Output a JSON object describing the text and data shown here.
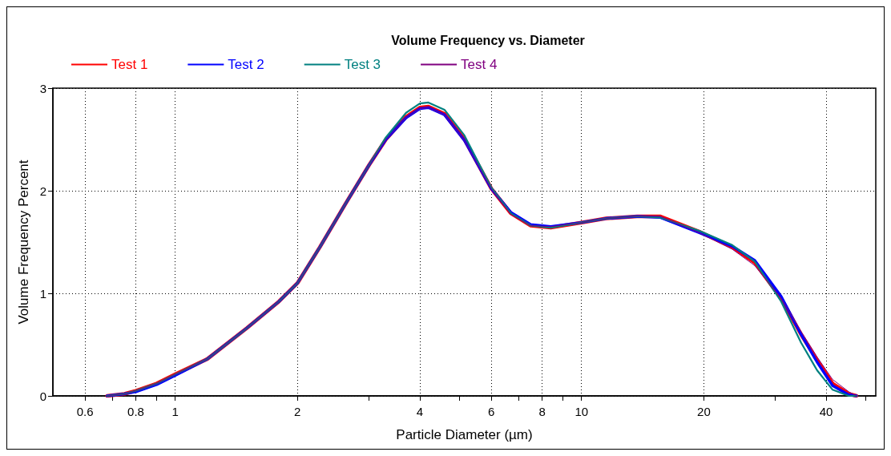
{
  "chart_data": {
    "type": "line",
    "title": "Volume Frequency vs. Diameter",
    "xlabel": "Particle Diameter (µm)",
    "ylabel": "Volume Frequency Percent",
    "log": "x",
    "xlim": [
      0.5,
      53
    ],
    "ylim": [
      0,
      3
    ],
    "yticks": [
      0,
      1,
      2,
      3
    ],
    "xticks": [
      0.6,
      {
        "value": 0.7,
        "label": null
      },
      0.8,
      {
        "value": 0.9,
        "label": null
      },
      1,
      2,
      {
        "value": 3,
        "label": null
      },
      4,
      {
        "value": 5,
        "label": null
      },
      6,
      {
        "value": 7,
        "label": null
      },
      8,
      {
        "value": 9,
        "label": null
      },
      10,
      20,
      {
        "value": 30,
        "label": null
      },
      40,
      {
        "value": 50,
        "label": null
      }
    ],
    "grid": true,
    "legend": "top left",
    "marker": "none",
    "line_style": "solid",
    "x": [
      0.68,
      0.75,
      0.8,
      0.9,
      1,
      1.2,
      1.5,
      1.8,
      2,
      2.27,
      2.65,
      3,
      3.3,
      3.7,
      4,
      4.2,
      4.6,
      5.15,
      6,
      6.7,
      7.5,
      8.4,
      10,
      11.5,
      13.7,
      15.6,
      19.5,
      23.5,
      26.7,
      31,
      34.7,
      38,
      41.5,
      45.5,
      47.5
    ],
    "series": [
      {
        "name": "Test 1",
        "color": "#ff0000",
        "values": [
          0,
          0.02,
          0.05,
          0.12,
          0.21,
          0.36,
          0.66,
          0.92,
          1.1,
          1.45,
          1.9,
          2.25,
          2.5,
          2.72,
          2.81,
          2.82,
          2.75,
          2.5,
          2.02,
          1.78,
          1.66,
          1.64,
          1.69,
          1.73,
          1.75,
          1.75,
          1.6,
          1.45,
          1.3,
          0.95,
          0.6,
          0.35,
          0.12,
          0.02,
          0
        ]
      },
      {
        "name": "Test 2",
        "color": "#0000ff",
        "values": [
          0,
          0.02,
          0.04,
          0.11,
          0.2,
          0.36,
          0.66,
          0.92,
          1.1,
          1.45,
          1.9,
          2.25,
          2.5,
          2.71,
          2.8,
          2.81,
          2.74,
          2.49,
          2.02,
          1.79,
          1.67,
          1.65,
          1.69,
          1.73,
          1.75,
          1.74,
          1.59,
          1.46,
          1.32,
          0.97,
          0.6,
          0.33,
          0.1,
          0.01,
          0
        ]
      },
      {
        "name": "Test 3",
        "color": "#008080",
        "values": [
          0,
          0.02,
          0.05,
          0.12,
          0.21,
          0.36,
          0.66,
          0.92,
          1.1,
          1.45,
          1.9,
          2.25,
          2.52,
          2.76,
          2.85,
          2.86,
          2.79,
          2.54,
          2.03,
          1.78,
          1.66,
          1.64,
          1.69,
          1.73,
          1.75,
          1.74,
          1.61,
          1.47,
          1.31,
          0.92,
          0.52,
          0.25,
          0.06,
          0,
          0
        ]
      },
      {
        "name": "Test 4",
        "color": "#800080",
        "values": [
          0,
          0.02,
          0.05,
          0.12,
          0.21,
          0.36,
          0.66,
          0.92,
          1.1,
          1.45,
          1.9,
          2.25,
          2.5,
          2.71,
          2.8,
          2.81,
          2.74,
          2.49,
          2.02,
          1.77,
          1.66,
          1.65,
          1.69,
          1.73,
          1.75,
          1.75,
          1.59,
          1.43,
          1.27,
          0.95,
          0.63,
          0.38,
          0.16,
          0.04,
          0
        ]
      }
    ]
  }
}
